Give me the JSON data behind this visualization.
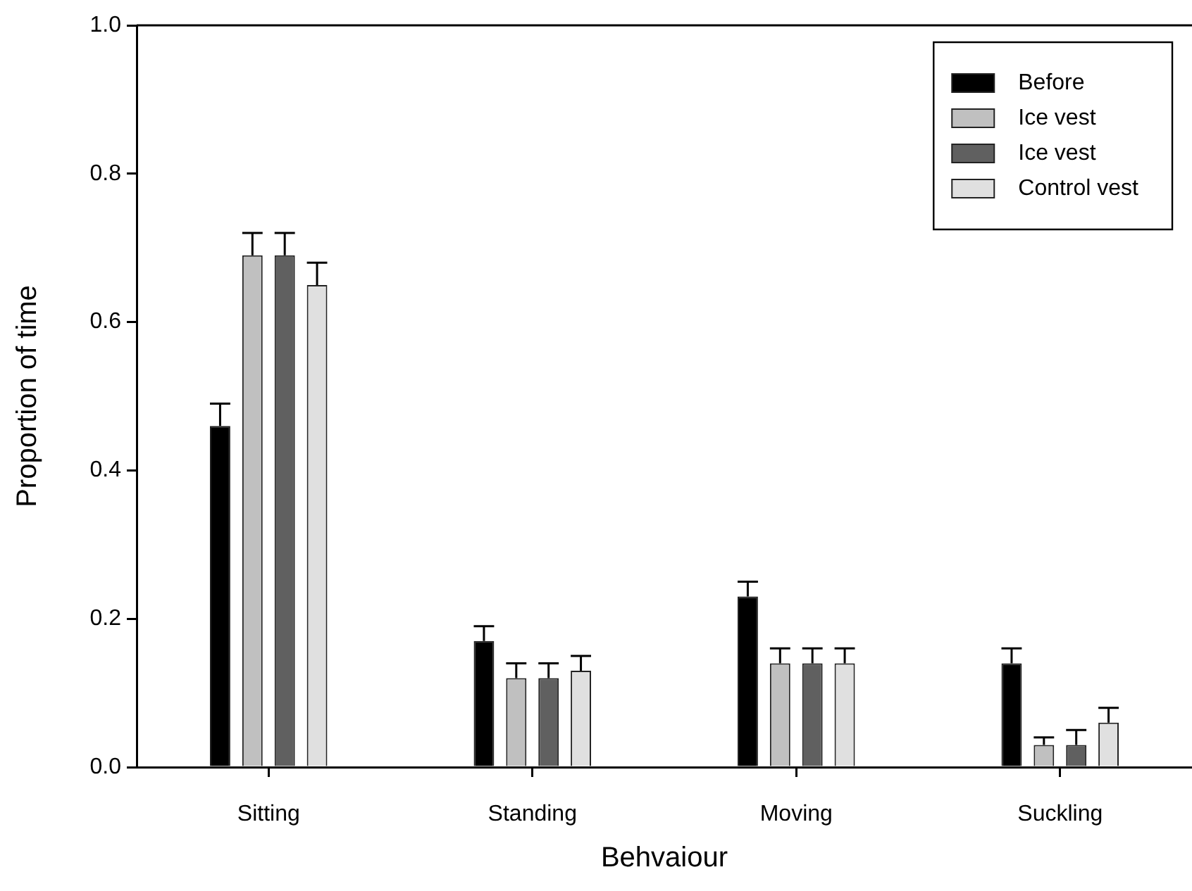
{
  "chart_data": {
    "type": "bar",
    "xlabel": "Behvaiour",
    "ylabel": "Proportion of time",
    "categories": [
      "Sitting",
      "Standing",
      "Moving",
      "Suckling"
    ],
    "series": [
      {
        "name": "Before",
        "color": "#000000",
        "values": [
          0.46,
          0.17,
          0.23,
          0.14
        ],
        "errors": [
          [
            0.46,
            0.49
          ],
          [
            0.17,
            0.19
          ],
          [
            0.23,
            0.25
          ],
          [
            0.14,
            0.16
          ]
        ]
      },
      {
        "name": "Ice vest",
        "color": "#c0c0c0",
        "values": [
          0.69,
          0.12,
          0.14,
          0.03
        ],
        "errors": [
          [
            0.69,
            0.72
          ],
          [
            0.12,
            0.14
          ],
          [
            0.14,
            0.16
          ],
          [
            0.03,
            0.04
          ]
        ]
      },
      {
        "name": "Ice vest",
        "color": "#606060",
        "values": [
          0.69,
          0.12,
          0.14,
          0.03
        ],
        "errors": [
          [
            0.69,
            0.72
          ],
          [
            0.12,
            0.14
          ],
          [
            0.14,
            0.16
          ],
          [
            0.03,
            0.05
          ]
        ]
      },
      {
        "name": "Control vest",
        "color": "#e0e0e0",
        "values": [
          0.65,
          0.13,
          0.14,
          0.06
        ],
        "errors": [
          [
            0.65,
            0.68
          ],
          [
            0.13,
            0.15
          ],
          [
            0.14,
            0.16
          ],
          [
            0.06,
            0.08
          ]
        ]
      }
    ],
    "ylim": [
      0,
      1
    ],
    "yticks": [
      {
        "value": 0,
        "label": "0.0"
      },
      {
        "value": 0.2,
        "label": "0.2"
      },
      {
        "value": 0.4,
        "label": "0.4"
      },
      {
        "value": 0.6,
        "label": "0.6"
      },
      {
        "value": 0.8,
        "label": "0.8"
      },
      {
        "value": 1,
        "label": "1.0"
      }
    ],
    "legend": "top right",
    "grid": false
  }
}
